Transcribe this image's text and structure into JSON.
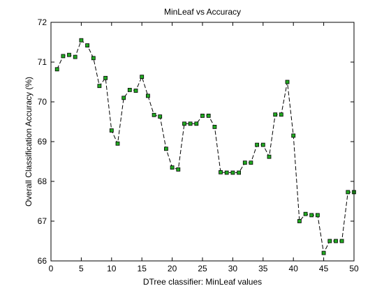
{
  "chart_data": {
    "type": "line",
    "title": "MinLeaf vs Accuracy",
    "xlabel": "DTree classifier: MinLeaf values",
    "ylabel": "Overall Classification Accuracy (%)",
    "xlim": [
      0,
      50
    ],
    "ylim": [
      66,
      72
    ],
    "x_ticks": [
      0,
      5,
      10,
      15,
      20,
      25,
      30,
      35,
      40,
      45,
      50
    ],
    "y_ticks": [
      66,
      67,
      68,
      69,
      70,
      71,
      72
    ],
    "grid": false,
    "line_style": "dashed",
    "line_color": "#000000",
    "marker": "square",
    "marker_fill": "#22aa22",
    "marker_edge": "#000000",
    "series": [
      {
        "x": [
          1,
          2,
          3,
          4,
          5,
          6,
          7,
          8,
          9,
          10,
          11,
          12,
          13,
          14,
          15,
          16,
          17,
          18,
          19,
          20,
          21,
          22,
          23,
          24,
          25,
          26,
          27,
          28,
          29,
          30,
          31,
          32,
          33,
          34,
          35,
          36,
          37,
          38,
          39,
          40,
          41,
          42,
          43,
          44,
          45,
          46,
          47,
          48,
          49,
          50
        ],
        "y": [
          70.82,
          71.15,
          71.18,
          71.13,
          71.55,
          71.42,
          71.1,
          70.4,
          70.6,
          69.28,
          68.95,
          70.1,
          70.3,
          70.28,
          70.63,
          70.15,
          69.67,
          69.63,
          68.82,
          68.35,
          68.3,
          69.45,
          69.45,
          69.45,
          69.65,
          69.65,
          69.37,
          68.23,
          68.22,
          68.22,
          68.22,
          68.47,
          68.47,
          68.92,
          68.92,
          68.62,
          69.68,
          69.68,
          70.5,
          69.15,
          67.0,
          67.18,
          67.15,
          67.15,
          66.2,
          66.5,
          66.5,
          66.5,
          67.73,
          67.73
        ]
      }
    ]
  }
}
